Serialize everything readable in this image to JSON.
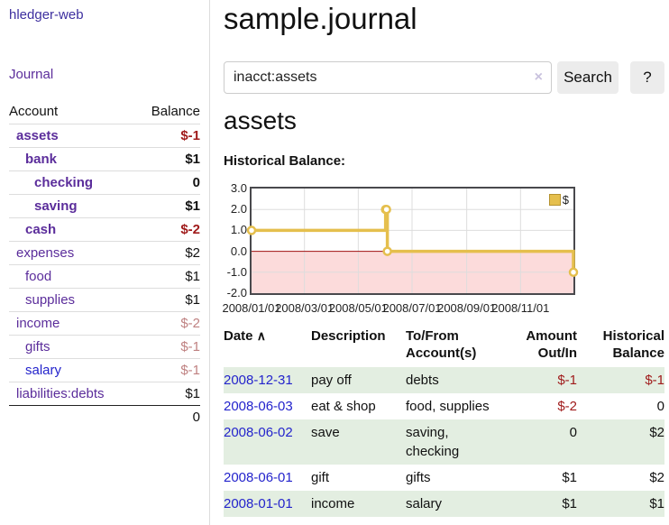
{
  "colors": {
    "purple": "#5b2d9b",
    "blue": "#2424cc",
    "neg_strong": "#a01c1c",
    "neg_soft": "#bf8181",
    "stripe_green": "#e3eee1",
    "chart_line_gold": "#e5bf4d",
    "chart_negative_fill": "#fcdbdb",
    "chart_zero_line": "#a01010",
    "chart_grid": "#dddddd"
  },
  "sidebar": {
    "app_title": "hledger-web",
    "journal_label": "Journal",
    "accounts_table": {
      "headers": {
        "account": "Account",
        "balance": "Balance"
      },
      "rows": [
        {
          "name": "assets",
          "balance": "$-1",
          "depth": 1,
          "bold": true,
          "name_color": "purple",
          "balance_color": "neg-strong"
        },
        {
          "name": "bank",
          "balance": "$1",
          "depth": 2,
          "bold": true,
          "name_color": "purple",
          "balance_color": ""
        },
        {
          "name": "checking",
          "balance": "0",
          "depth": 3,
          "bold": true,
          "name_color": "purple",
          "balance_color": ""
        },
        {
          "name": "saving",
          "balance": "$1",
          "depth": 3,
          "bold": true,
          "name_color": "purple",
          "balance_color": ""
        },
        {
          "name": "cash",
          "balance": "$-2",
          "depth": 2,
          "bold": true,
          "name_color": "purple",
          "balance_color": "neg-strong"
        },
        {
          "name": "expenses",
          "balance": "$2",
          "depth": 1,
          "bold": false,
          "name_color": "purple",
          "balance_color": ""
        },
        {
          "name": "food",
          "balance": "$1",
          "depth": 2,
          "bold": false,
          "name_color": "purple",
          "balance_color": ""
        },
        {
          "name": "supplies",
          "balance": "$1",
          "depth": 2,
          "bold": false,
          "name_color": "purple",
          "balance_color": ""
        },
        {
          "name": "income",
          "balance": "$-2",
          "depth": 1,
          "bold": false,
          "name_color": "purple",
          "balance_color": "neg-soft"
        },
        {
          "name": "gifts",
          "balance": "$-1",
          "depth": 2,
          "bold": false,
          "name_color": "purple",
          "balance_color": "neg-soft"
        },
        {
          "name": "salary",
          "balance": "$-1",
          "depth": 2,
          "bold": false,
          "name_color": "blue",
          "balance_color": "neg-soft"
        },
        {
          "name": "liabilities:debts",
          "balance": "$1",
          "depth": 1,
          "bold": false,
          "name_color": "purple",
          "balance_color": ""
        }
      ],
      "total": "0"
    }
  },
  "main": {
    "title": "sample.journal",
    "search": {
      "value": "inacct:assets",
      "clear_icon": "×",
      "button_label": "Search",
      "help_label": "?"
    },
    "account_heading": "assets",
    "chart_label": "Historical Balance:"
  },
  "chart_data": {
    "type": "line",
    "title": "Historical Balance",
    "step": true,
    "x_range": [
      "2008-01-01",
      "2008-12-31"
    ],
    "ylim": [
      -2.0,
      3.0
    ],
    "y_ticks": [
      "3.0",
      "2.0",
      "1.0",
      "0.0",
      "-1.0",
      "-2.0"
    ],
    "x_ticks": [
      {
        "date": "2008-01-01",
        "label": "2008/01/01"
      },
      {
        "date": "2008-03-01",
        "label": "2008/03/01"
      },
      {
        "date": "2008-05-01",
        "label": "2008/05/01"
      },
      {
        "date": "2008-07-01",
        "label": "2008/07/01"
      },
      {
        "date": "2008-09-01",
        "label": "2008/09/01"
      },
      {
        "date": "2008-11-01",
        "label": "2008/11/01"
      }
    ],
    "series": [
      {
        "name": "$",
        "points": [
          {
            "x": "2008-01-01",
            "y": 1
          },
          {
            "x": "2008-06-01",
            "y": 2
          },
          {
            "x": "2008-06-02",
            "y": 2
          },
          {
            "x": "2008-06-03",
            "y": 0
          },
          {
            "x": "2008-12-31",
            "y": -1
          }
        ]
      }
    ],
    "legend": {
      "position": "top-right",
      "entries": [
        "$"
      ]
    },
    "grid": true,
    "negative_region_shaded": true
  },
  "register": {
    "headers": {
      "date": "Date",
      "sort_icon": "∧",
      "description": "Description",
      "accounts": "To/From Account(s)",
      "amount": "Amount Out/In",
      "balance": "Historical Balance"
    },
    "rows": [
      {
        "date": "2008-12-31",
        "description": "pay off",
        "accounts": "debts",
        "amount": "$-1",
        "balance": "$-1",
        "amount_color": "neg-strong",
        "balance_color": "neg-strong",
        "stripe": true
      },
      {
        "date": "2008-06-03",
        "description": "eat & shop",
        "accounts": "food, supplies",
        "amount": "$-2",
        "balance": "0",
        "amount_color": "neg-strong",
        "balance_color": "",
        "stripe": false
      },
      {
        "date": "2008-06-02",
        "description": "save",
        "accounts": "saving, checking",
        "amount": "0",
        "balance": "$2",
        "amount_color": "",
        "balance_color": "",
        "stripe": true
      },
      {
        "date": "2008-06-01",
        "description": "gift",
        "accounts": "gifts",
        "amount": "$1",
        "balance": "$2",
        "amount_color": "",
        "balance_color": "",
        "stripe": false
      },
      {
        "date": "2008-01-01",
        "description": "income",
        "accounts": "salary",
        "amount": "$1",
        "balance": "$1",
        "amount_color": "",
        "balance_color": "",
        "stripe": true
      }
    ]
  }
}
